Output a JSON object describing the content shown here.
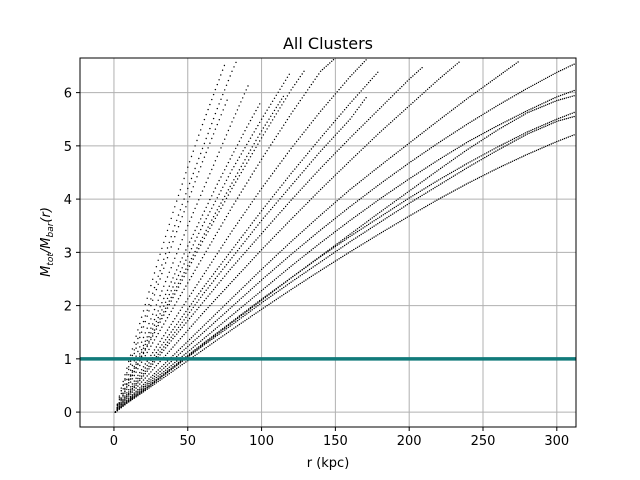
{
  "chart_data": {
    "type": "scatter",
    "title": "All Clusters",
    "xlabel": "r (kpc)",
    "ylabel": "M_tot/M_bar(r)",
    "xlim": [
      -23,
      313
    ],
    "ylim": [
      -0.28,
      6.65
    ],
    "xticks": [
      0,
      50,
      100,
      150,
      200,
      250,
      300
    ],
    "yticks": [
      0,
      1,
      2,
      3,
      4,
      5,
      6
    ],
    "grid": true,
    "marker_color": "#000000",
    "reference_line": {
      "y": 1,
      "color": "#117a7a"
    },
    "series": [
      {
        "x": [
          1,
          5,
          10,
          20,
          30,
          40,
          50,
          60,
          70,
          76
        ],
        "y": [
          0,
          0.45,
          0.95,
          1.9,
          2.85,
          3.75,
          4.6,
          5.4,
          6.15,
          6.6
        ]
      },
      {
        "x": [
          1,
          5,
          10,
          20,
          30,
          40,
          50,
          60,
          70,
          80,
          84
        ],
        "y": [
          0,
          0.4,
          0.85,
          1.7,
          2.55,
          3.4,
          4.2,
          4.95,
          5.7,
          6.4,
          6.65
        ]
      },
      {
        "x": [
          1,
          5,
          10,
          20,
          30,
          40,
          50,
          60,
          70,
          78
        ],
        "y": [
          0,
          0.4,
          0.8,
          1.6,
          2.4,
          3.2,
          3.95,
          4.7,
          5.4,
          5.95
        ]
      },
      {
        "x": [
          1,
          5,
          10,
          20,
          30,
          40,
          50,
          60,
          70,
          80,
          92
        ],
        "y": [
          0,
          0.35,
          0.7,
          1.4,
          2.1,
          2.8,
          3.5,
          4.15,
          4.8,
          5.45,
          6.2
        ]
      },
      {
        "x": [
          1,
          10,
          20,
          30,
          40,
          50,
          60,
          70,
          80,
          90,
          100
        ],
        "y": [
          0,
          0.62,
          1.25,
          1.9,
          2.52,
          3.12,
          3.7,
          4.28,
          4.82,
          5.35,
          5.85
        ]
      },
      {
        "x": [
          1,
          10,
          20,
          30,
          40,
          50,
          60,
          70,
          80,
          90,
          100,
          110,
          116
        ],
        "y": [
          0,
          0.55,
          1.12,
          1.68,
          2.22,
          2.75,
          3.28,
          3.8,
          4.3,
          4.8,
          5.28,
          5.72,
          5.98
        ]
      },
      {
        "x": [
          1,
          10,
          20,
          40,
          60,
          80,
          100,
          120
        ],
        "y": [
          0,
          0.6,
          1.2,
          2.35,
          3.5,
          4.55,
          5.5,
          6.4
        ]
      },
      {
        "x": [
          1,
          10,
          20,
          40,
          60,
          80,
          100,
          120,
          130
        ],
        "y": [
          0,
          0.55,
          1.1,
          2.15,
          3.2,
          4.2,
          5.15,
          6.05,
          6.45
        ]
      },
      {
        "x": [
          1,
          10,
          20,
          40,
          60,
          80,
          100,
          120,
          140,
          150
        ],
        "y": [
          0,
          0.5,
          1,
          1.95,
          2.9,
          3.85,
          4.75,
          5.6,
          6.4,
          6.65
        ]
      },
      {
        "x": [
          1,
          10,
          20,
          40,
          60,
          80,
          100,
          120,
          140,
          160,
          172
        ],
        "y": [
          0,
          0.42,
          0.85,
          1.7,
          2.55,
          3.4,
          4.2,
          4.95,
          5.65,
          6.3,
          6.65
        ]
      },
      {
        "x": [
          1,
          10,
          20,
          40,
          60,
          80,
          100,
          120,
          140,
          160,
          172
        ],
        "y": [
          0,
          0.35,
          0.72,
          1.45,
          2.2,
          2.9,
          3.6,
          4.25,
          4.9,
          5.5,
          5.95
        ]
      },
      {
        "x": [
          1,
          10,
          20,
          40,
          60,
          80,
          100,
          120,
          140,
          160,
          180
        ],
        "y": [
          0,
          0.38,
          0.78,
          1.55,
          2.32,
          3.05,
          3.78,
          4.48,
          5.15,
          5.8,
          6.42
        ]
      },
      {
        "x": [
          1,
          10,
          20,
          40,
          60,
          80,
          100,
          120,
          140,
          160,
          180,
          200,
          210
        ],
        "y": [
          0,
          0.33,
          0.68,
          1.38,
          2.05,
          2.72,
          3.35,
          3.98,
          4.58,
          5.15,
          5.7,
          6.25,
          6.5
        ]
      },
      {
        "x": [
          1,
          10,
          20,
          40,
          60,
          80,
          100,
          120,
          140,
          160,
          180,
          200,
          220,
          235
        ],
        "y": [
          0,
          0.3,
          0.6,
          1.22,
          1.85,
          2.45,
          3.05,
          3.62,
          4.18,
          4.72,
          5.25,
          5.75,
          6.25,
          6.6
        ]
      },
      {
        "x": [
          1,
          10,
          20,
          40,
          60,
          80,
          100,
          120,
          140,
          160,
          180,
          200,
          220,
          240,
          260,
          275
        ],
        "y": [
          0,
          0.26,
          0.52,
          1.06,
          1.6,
          2.14,
          2.68,
          3.2,
          3.7,
          4.18,
          4.62,
          5.05,
          5.48,
          5.9,
          6.3,
          6.6
        ]
      },
      {
        "x": [
          1,
          10,
          20,
          40,
          60,
          80,
          100,
          120,
          140,
          160,
          180,
          200,
          220,
          240,
          260,
          280,
          300,
          313
        ],
        "y": [
          0,
          0.24,
          0.48,
          0.98,
          1.48,
          1.98,
          2.48,
          2.96,
          3.42,
          3.86,
          4.28,
          4.68,
          5.06,
          5.42,
          5.76,
          6.08,
          6.38,
          6.55
        ]
      },
      {
        "x": [
          1,
          10,
          20,
          40,
          60,
          80,
          100,
          120,
          140,
          160,
          180,
          200,
          220,
          240,
          260,
          280,
          300,
          313
        ],
        "y": [
          0,
          0.22,
          0.45,
          0.9,
          1.36,
          1.82,
          2.28,
          2.74,
          3.18,
          3.6,
          4,
          4.38,
          4.74,
          5.08,
          5.38,
          5.66,
          5.92,
          6.05
        ]
      },
      {
        "x": [
          1,
          10,
          20,
          40,
          60,
          80,
          100,
          120,
          140,
          160,
          180,
          200,
          220,
          240,
          260,
          280,
          300,
          313
        ],
        "y": [
          0,
          0.21,
          0.42,
          0.85,
          1.28,
          1.7,
          2.12,
          2.52,
          2.92,
          3.3,
          3.66,
          4.02,
          4.36,
          4.68,
          4.98,
          5.26,
          5.5,
          5.64
        ]
      },
      {
        "x": [
          1,
          10,
          20,
          40,
          60,
          80,
          100,
          120,
          140,
          160,
          180,
          200,
          220,
          240,
          260,
          280,
          300,
          313
        ],
        "y": [
          0,
          0.19,
          0.38,
          0.77,
          1.16,
          1.55,
          1.93,
          2.3,
          2.66,
          3.01,
          3.35,
          3.68,
          4,
          4.3,
          4.58,
          4.84,
          5.08,
          5.22
        ]
      },
      {
        "x": [
          1,
          10,
          20,
          40,
          60,
          80,
          100,
          120,
          140,
          160,
          180,
          200,
          220,
          240,
          260,
          280,
          300,
          313
        ],
        "y": [
          0,
          0.2,
          0.4,
          0.82,
          1.24,
          1.64,
          2.05,
          2.44,
          2.82,
          3.2,
          3.56,
          3.92,
          4.26,
          4.6,
          4.92,
          5.22,
          5.46,
          5.56
        ]
      },
      {
        "x": [
          1,
          10,
          20,
          40,
          60,
          80,
          100,
          120,
          140,
          160,
          180,
          200,
          220,
          240,
          260,
          280,
          300,
          313
        ],
        "y": [
          0,
          0.2,
          0.41,
          0.83,
          1.26,
          1.68,
          2.1,
          2.52,
          2.93,
          3.34,
          3.75,
          4.15,
          4.55,
          4.94,
          5.3,
          5.62,
          5.85,
          5.95
        ]
      }
    ]
  }
}
